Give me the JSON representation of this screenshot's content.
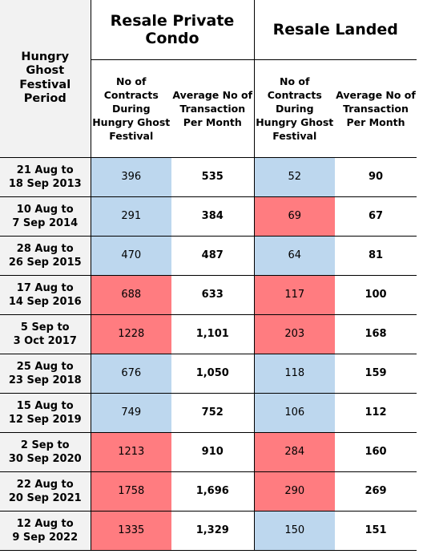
{
  "header": {
    "period": "Hungry Ghost Festival Period",
    "condo": "Resale Private Condo",
    "landed": "Resale Landed",
    "contracts": "No of Contracts During Hungry Ghost Festival",
    "average": "Average No of Transaction Per Month"
  },
  "rows": [
    {
      "period_line1": "21 Aug to",
      "period_line2": "18 Sep 2013",
      "condo_contracts": "396",
      "condo_avg": "535",
      "landed_contracts": "52",
      "landed_avg": "90",
      "condo_highlight": "low",
      "landed_highlight": "low"
    },
    {
      "period_line1": "10 Aug to",
      "period_line2": "7 Sep 2014",
      "condo_contracts": "291",
      "condo_avg": "384",
      "landed_contracts": "69",
      "landed_avg": "67",
      "condo_highlight": "low",
      "landed_highlight": "high"
    },
    {
      "period_line1": "28 Aug to",
      "period_line2": "26 Sep 2015",
      "condo_contracts": "470",
      "condo_avg": "487",
      "landed_contracts": "64",
      "landed_avg": "81",
      "condo_highlight": "low",
      "landed_highlight": "low"
    },
    {
      "period_line1": "17 Aug to",
      "period_line2": "14 Sep 2016",
      "condo_contracts": "688",
      "condo_avg": "633",
      "landed_contracts": "117",
      "landed_avg": "100",
      "condo_highlight": "high",
      "landed_highlight": "high"
    },
    {
      "period_line1": "5 Sep to",
      "period_line2": "3 Oct 2017",
      "condo_contracts": "1228",
      "condo_avg": "1,101",
      "landed_contracts": "203",
      "landed_avg": "168",
      "condo_highlight": "high",
      "landed_highlight": "high"
    },
    {
      "period_line1": "25 Aug to",
      "period_line2": "23 Sep 2018",
      "condo_contracts": "676",
      "condo_avg": "1,050",
      "landed_contracts": "118",
      "landed_avg": "159",
      "condo_highlight": "low",
      "landed_highlight": "low"
    },
    {
      "period_line1": "15 Aug to",
      "period_line2": "12 Sep 2019",
      "condo_contracts": "749",
      "condo_avg": "752",
      "landed_contracts": "106",
      "landed_avg": "112",
      "condo_highlight": "low",
      "landed_highlight": "low"
    },
    {
      "period_line1": "2 Sep to",
      "period_line2": "30 Sep 2020",
      "condo_contracts": "1213",
      "condo_avg": "910",
      "landed_contracts": "284",
      "landed_avg": "160",
      "condo_highlight": "high",
      "landed_highlight": "high"
    },
    {
      "period_line1": "22 Aug to",
      "period_line2": "20 Sep 2021",
      "condo_contracts": "1758",
      "condo_avg": "1,696",
      "landed_contracts": "290",
      "landed_avg": "269",
      "condo_highlight": "high",
      "landed_highlight": "high"
    },
    {
      "period_line1": "12 Aug to",
      "period_line2": "9 Sep 2022",
      "condo_contracts": "1335",
      "condo_avg": "1,329",
      "landed_contracts": "150",
      "landed_avg": "151",
      "condo_highlight": "high",
      "landed_highlight": "low"
    }
  ],
  "colors": {
    "high": "#ff7c80",
    "low": "#bdd7ee",
    "period_bg": "#f2f2f2"
  }
}
